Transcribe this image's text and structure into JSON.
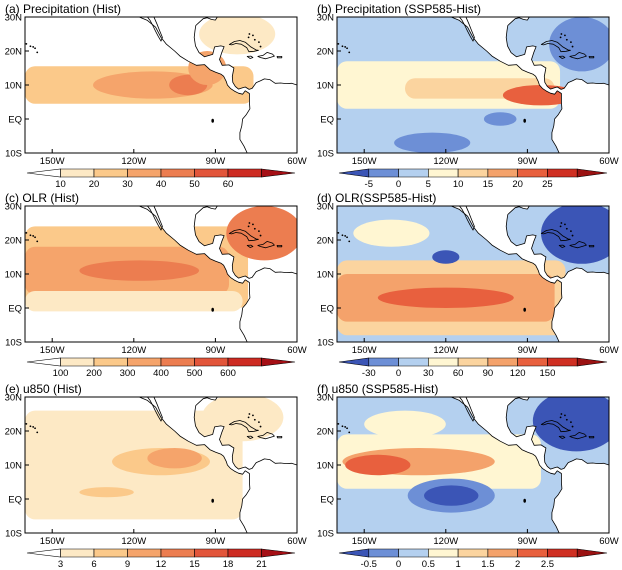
{
  "palettes": {
    "hist": [
      "#ffffff",
      "#fde9c5",
      "#fbc98a",
      "#f5a46b",
      "#ec7d50",
      "#e2553a",
      "#cd2b22",
      "#a50f15"
    ],
    "diff": [
      "#3b55b6",
      "#6d8fd6",
      "#b4d0ef",
      "#fff6d2",
      "#fbd49f",
      "#f4a26b",
      "#e8603e",
      "#cf2f22",
      "#9b1212"
    ],
    "land": "#ffffff",
    "coast": "#000000"
  },
  "axes": {
    "x_ticks": [
      "150W",
      "120W",
      "90W",
      "60W"
    ],
    "y_ticks": [
      "30N",
      "20N",
      "10N",
      "EQ",
      "10S"
    ]
  },
  "panels": [
    {
      "id": "a",
      "title": "(a) Precipitation (Hist)",
      "palette": "hist",
      "colorbar_labels": [
        "10",
        "20",
        "30",
        "40",
        "50",
        "60"
      ],
      "chart_data": {
        "type": "heatmap",
        "variable": "Precipitation",
        "scenario": "Hist",
        "xlim": [
          "160W",
          "60W"
        ],
        "ylim": [
          "10S",
          "30N"
        ],
        "levels": [
          10,
          20,
          30,
          40,
          50,
          60
        ],
        "features": [
          {
            "kind": "band",
            "lat": 10,
            "lat_halfwidth": 5.5,
            "lon_from": -160,
            "lon_to": -76,
            "value": 25
          },
          {
            "kind": "blob",
            "lon": -113,
            "lat": 10,
            "lon_radius": 22,
            "lat_radius": 4,
            "value": 37
          },
          {
            "kind": "blob",
            "lon": -100,
            "lat": 10,
            "lon_radius": 7,
            "lat_radius": 3,
            "value": 47
          },
          {
            "kind": "blob",
            "lon": -93,
            "lat": 15,
            "lon_radius": 7,
            "lat_radius": 5,
            "value": 30
          },
          {
            "kind": "blob",
            "lon": -82,
            "lat": 25,
            "lon_radius": 14,
            "lat_radius": 6,
            "value": 13
          }
        ]
      }
    },
    {
      "id": "b",
      "title": "(b) Precipitation (SSP585-Hist)",
      "palette": "diff",
      "colorbar_labels": [
        "-5",
        "0",
        "5",
        "10",
        "15",
        "20",
        "25"
      ],
      "chart_data": {
        "type": "heatmap",
        "variable": "Precipitation",
        "scenario": "SSP585-Hist",
        "xlim": [
          "160W",
          "60W"
        ],
        "ylim": [
          "10S",
          "30N"
        ],
        "levels": [
          -5,
          0,
          5,
          10,
          15,
          20,
          25
        ],
        "features": [
          {
            "kind": "fill",
            "value": 2
          },
          {
            "kind": "band",
            "lat": 10,
            "lat_halfwidth": 7,
            "lon_from": -160,
            "lon_to": -78,
            "value": 7
          },
          {
            "kind": "band",
            "lat": 9,
            "lat_halfwidth": 3,
            "lon_from": -135,
            "lon_to": -80,
            "value": 13
          },
          {
            "kind": "blob",
            "lon": -85,
            "lat": 7,
            "lon_radius": 14,
            "lat_radius": 3,
            "value": 22
          },
          {
            "kind": "blob",
            "lon": -125,
            "lat": -7,
            "lon_radius": 14,
            "lat_radius": 3,
            "value": -3
          },
          {
            "kind": "blob",
            "lon": -100,
            "lat": 0,
            "lon_radius": 6,
            "lat_radius": 2,
            "value": -2
          },
          {
            "kind": "blob",
            "lon": -70,
            "lat": 22,
            "lon_radius": 12,
            "lat_radius": 8,
            "value": -3
          }
        ]
      }
    },
    {
      "id": "c",
      "title": "(c) OLR (Hist)",
      "palette": "hist",
      "colorbar_labels": [
        "100",
        "200",
        "300",
        "400",
        "500",
        "600"
      ],
      "chart_data": {
        "type": "heatmap",
        "variable": "OLR",
        "scenario": "Hist",
        "xlim": [
          "160W",
          "60W"
        ],
        "ylim": [
          "10S",
          "30N"
        ],
        "levels": [
          100,
          200,
          300,
          400,
          500,
          600
        ],
        "features": [
          {
            "kind": "band",
            "lat": 12,
            "lat_halfwidth": 12,
            "lon_from": -160,
            "lon_to": -78,
            "value": 260
          },
          {
            "kind": "band",
            "lat": 11,
            "lat_halfwidth": 7,
            "lon_from": -160,
            "lon_to": -85,
            "value": 370
          },
          {
            "kind": "blob",
            "lon": -118,
            "lat": 11,
            "lon_radius": 22,
            "lat_radius": 3,
            "value": 480
          },
          {
            "kind": "blob",
            "lon": -72,
            "lat": 22,
            "lon_radius": 14,
            "lat_radius": 8,
            "value": 440
          },
          {
            "kind": "band",
            "lat": 2,
            "lat_halfwidth": 3,
            "lon_from": -160,
            "lon_to": -80,
            "value": 180
          }
        ]
      }
    },
    {
      "id": "d",
      "title": "(d) OLR(SSP585-Hist)",
      "palette": "diff",
      "colorbar_labels": [
        "-30",
        "0",
        "30",
        "60",
        "90",
        "120",
        "150"
      ],
      "chart_data": {
        "type": "heatmap",
        "variable": "OLR",
        "scenario": "SSP585-Hist",
        "xlim": [
          "160W",
          "60W"
        ],
        "ylim": [
          "10S",
          "30N"
        ],
        "levels": [
          -30,
          0,
          30,
          60,
          90,
          120,
          150
        ],
        "features": [
          {
            "kind": "fill",
            "value": 10
          },
          {
            "kind": "band",
            "lat": 3,
            "lat_halfwidth": 11,
            "lon_from": -160,
            "lon_to": -76,
            "value": 70
          },
          {
            "kind": "band",
            "lat": 3,
            "lat_halfwidth": 7,
            "lon_from": -160,
            "lon_to": -80,
            "value": 105
          },
          {
            "kind": "blob",
            "lon": -120,
            "lat": 3,
            "lon_radius": 25,
            "lat_radius": 3,
            "value": 130
          },
          {
            "kind": "blob",
            "lon": -70,
            "lat": 22,
            "lon_radius": 15,
            "lat_radius": 9,
            "value": -40
          },
          {
            "kind": "blob",
            "lon": -120,
            "lat": 15,
            "lon_radius": 5,
            "lat_radius": 2,
            "value": -35
          },
          {
            "kind": "blob",
            "lon": -140,
            "lat": 22,
            "lon_radius": 14,
            "lat_radius": 4,
            "value": 40
          }
        ]
      }
    },
    {
      "id": "e",
      "title": "(e) u850 (Hist)",
      "palette": "hist",
      "colorbar_labels": [
        "3",
        "6",
        "9",
        "12",
        "15",
        "18",
        "21"
      ],
      "chart_data": {
        "type": "heatmap",
        "variable": "u850",
        "scenario": "Hist",
        "xlim": [
          "160W",
          "60W"
        ],
        "ylim": [
          "10S",
          "30N"
        ],
        "levels": [
          3,
          6,
          9,
          12,
          15,
          18,
          21
        ],
        "features": [
          {
            "kind": "band",
            "lat": 10,
            "lat_halfwidth": 16,
            "lon_from": -160,
            "lon_to": -80,
            "value": 5
          },
          {
            "kind": "blob",
            "lon": -110,
            "lat": 11,
            "lon_radius": 18,
            "lat_radius": 4,
            "value": 8
          },
          {
            "kind": "blob",
            "lon": -105,
            "lat": 12,
            "lon_radius": 10,
            "lat_radius": 3,
            "value": 11
          },
          {
            "kind": "blob",
            "lon": -130,
            "lat": 2,
            "lon_radius": 10,
            "lat_radius": 1.5,
            "value": 7
          },
          {
            "kind": "blob",
            "lon": -80,
            "lat": 24,
            "lon_radius": 15,
            "lat_radius": 7,
            "value": 5
          }
        ]
      }
    },
    {
      "id": "f",
      "title": "(f) u850 (SSP585-Hist)",
      "palette": "diff",
      "colorbar_labels": [
        "-0.5",
        "0",
        "0.5",
        "1",
        "1.5",
        "2",
        "2.5"
      ],
      "chart_data": {
        "type": "heatmap",
        "variable": "u850",
        "scenario": "SSP585-Hist",
        "xlim": [
          "160W",
          "60W"
        ],
        "ylim": [
          "10S",
          "30N"
        ],
        "levels": [
          -0.5,
          0,
          0.5,
          1,
          1.5,
          2,
          2.5
        ],
        "features": [
          {
            "kind": "fill",
            "value": 0.2
          },
          {
            "kind": "band",
            "lat": 11,
            "lat_halfwidth": 8,
            "lon_from": -160,
            "lon_to": -85,
            "value": 0.8
          },
          {
            "kind": "blob",
            "lon": -130,
            "lat": 11,
            "lon_radius": 28,
            "lat_radius": 4,
            "value": 1.8
          },
          {
            "kind": "blob",
            "lon": -145,
            "lat": 10,
            "lon_radius": 12,
            "lat_radius": 3,
            "value": 2.2
          },
          {
            "kind": "blob",
            "lon": -118,
            "lat": 1,
            "lon_radius": 16,
            "lat_radius": 5,
            "value": -0.3
          },
          {
            "kind": "blob",
            "lon": -118,
            "lat": 1,
            "lon_radius": 10,
            "lat_radius": 3,
            "value": -0.7
          },
          {
            "kind": "blob",
            "lon": -72,
            "lat": 23,
            "lon_radius": 16,
            "lat_radius": 9,
            "value": -0.7
          },
          {
            "kind": "blob",
            "lon": -135,
            "lat": 22,
            "lon_radius": 15,
            "lat_radius": 4,
            "value": 0.6
          }
        ]
      }
    }
  ]
}
